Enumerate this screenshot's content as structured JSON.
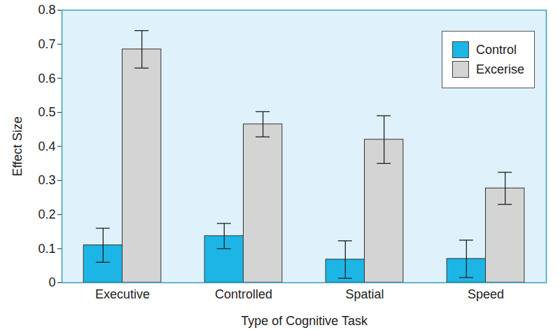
{
  "chart_data": {
    "type": "bar",
    "x_label": "Type of Cognitive Task",
    "y_label": "Effect Size",
    "categories": [
      "Executive",
      "Controlled",
      "Spatial",
      "Speed"
    ],
    "series": [
      {
        "name": "Control",
        "color": "#1cb5e6",
        "values": [
          0.11,
          0.137,
          0.068,
          0.07
        ],
        "errors": [
          0.05,
          0.037,
          0.055,
          0.055
        ]
      },
      {
        "name": "Excerise",
        "color": "#d4d4d4",
        "values": [
          0.685,
          0.465,
          0.42,
          0.277
        ],
        "errors": [
          0.055,
          0.037,
          0.07,
          0.047
        ]
      }
    ],
    "ylim": [
      0,
      0.8
    ],
    "yticks": [
      0,
      0.1,
      0.2,
      0.3,
      0.4,
      0.5,
      0.6,
      0.7,
      0.8
    ],
    "grid": false,
    "legend": "top-right"
  }
}
